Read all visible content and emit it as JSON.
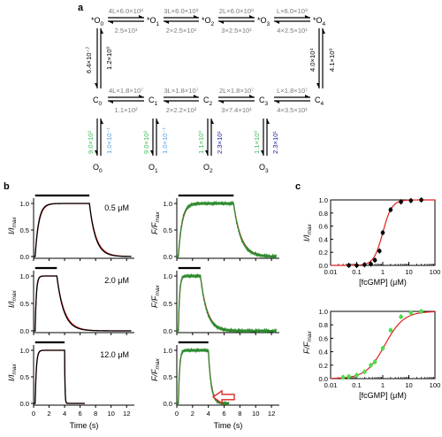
{
  "panel_a": {
    "label": "a",
    "open_top": {
      "states": [
        "*O0",
        "*O1",
        "*O2",
        "*O3",
        "*O4"
      ],
      "forward_rates": [
        "4L×6.0×10⁸",
        "3L×6.0×10⁸",
        "2L×6.0×10⁸",
        "L×6.0×10⁸"
      ],
      "backward_rates": [
        "2.5×10¹",
        "2×2.5×10¹",
        "3×2.5×10¹",
        "4×2.5×10¹"
      ]
    },
    "closed_mid": {
      "states": [
        "C0",
        "C1",
        "C2",
        "C3",
        "C4"
      ],
      "forward_rates": [
        "4L×1.8×10⁷",
        "3L×1.8×10⁷",
        "2L×1.8×10⁷",
        "L×1.8×10⁷"
      ],
      "backward_rates": [
        "1.1×10²",
        "2×2.2×10²",
        "3×7.4×10¹",
        "4×3.5×10¹"
      ]
    },
    "left_vertical": {
      "down": "6.4×10⁻⁷",
      "up": "1.2×10⁰"
    },
    "right_vertical": {
      "down": "4.0×10⁴",
      "up": "4.1×10⁰"
    },
    "bottom": {
      "states": [
        "O0",
        "O1",
        "O2",
        "O3"
      ],
      "down_rates": [
        "9.0×10²",
        "9.0×10²",
        "1.1×10⁰",
        "1.1×10⁰"
      ],
      "up_rates": [
        "1.0×10⁻¹",
        "1.0×10⁻¹",
        "2.3×10¹",
        "2.3×10¹"
      ]
    },
    "colors": {
      "gray": "#7a7a7a",
      "green": "#3fbf5f",
      "lightblue": "#5aa0e0",
      "darkblue": "#1a1aa0"
    }
  },
  "panel_b": {
    "label": "b",
    "concentrations": [
      "0.5 μM",
      "2.0 μM",
      "12.0 μM"
    ],
    "ylabel_current": "I/I",
    "ylabel_current_sub": "max",
    "ylabel_fluor": "F/F",
    "ylabel_fluor_sub": "max",
    "xlabel": "Time (s)",
    "yticks": [
      "0.0",
      "0.5",
      "1.0"
    ],
    "xticks": [
      "0",
      "2",
      "4",
      "6",
      "8",
      "10",
      "12"
    ],
    "traces": [
      {
        "pulse": [
          0.2,
          7.2
        ],
        "current_decay_tau": 0.8,
        "fluor_decay_tau": 0.9
      },
      {
        "pulse": [
          0.2,
          3.0
        ],
        "current_decay_tau": 0.9,
        "fluor_decay_tau": 0.8
      },
      {
        "pulse": [
          0.2,
          4.0
        ],
        "current_decay_tau": 0.05,
        "fluor_decay_tau": 0.35
      }
    ],
    "colors": {
      "black": "#000000",
      "red": "#e02020",
      "green": "#2e8b2e",
      "arrow": "#e02020"
    }
  },
  "panel_c": {
    "label": "c",
    "xlabel": "[fcGMP] (μM)",
    "top_ylabel": "I/I",
    "top_ylabel_sub": "max",
    "bottom_ylabel": "F/F",
    "bottom_ylabel_sub": "max",
    "xticks": [
      "0.01",
      "0.1",
      "1",
      "10",
      "100"
    ],
    "yticks": [
      "0.0",
      "0.2",
      "0.4",
      "0.6",
      "0.8",
      "1.0"
    ]
  },
  "chart_data": [
    {
      "type": "scatter",
      "title": "",
      "xlabel": "[fcGMP] (μM)",
      "ylabel": "I/Imax",
      "xscale": "log",
      "xlim": [
        0.01,
        100
      ],
      "ylim": [
        0,
        1
      ],
      "x": [
        0.05,
        0.1,
        0.2,
        0.35,
        0.5,
        0.75,
        1.0,
        2.0,
        5.0,
        12.0,
        30.0
      ],
      "y": [
        0.0,
        0.0,
        0.01,
        0.02,
        0.08,
        0.22,
        0.5,
        0.85,
        0.97,
        0.99,
        1.0
      ],
      "fit": {
        "ec50": 1.0,
        "hill": 2.5
      },
      "colors": {
        "points": "#000000",
        "fit": "#e02020"
      }
    },
    {
      "type": "scatter",
      "title": "",
      "xlabel": "[fcGMP] (μM)",
      "ylabel": "F/Fmax",
      "xscale": "log",
      "xlim": [
        0.01,
        100
      ],
      "ylim": [
        0,
        1
      ],
      "x": [
        0.03,
        0.05,
        0.1,
        0.2,
        0.35,
        0.5,
        1.0,
        2.0,
        5.0,
        12.0,
        30.0
      ],
      "y": [
        0.02,
        0.03,
        0.05,
        0.1,
        0.2,
        0.25,
        0.45,
        0.72,
        0.92,
        0.98,
        1.0
      ],
      "fit": {
        "ec50": 1.2,
        "hill": 1.2
      },
      "colors": {
        "points": "#4cdc4c",
        "fit": "#e02020"
      }
    }
  ]
}
